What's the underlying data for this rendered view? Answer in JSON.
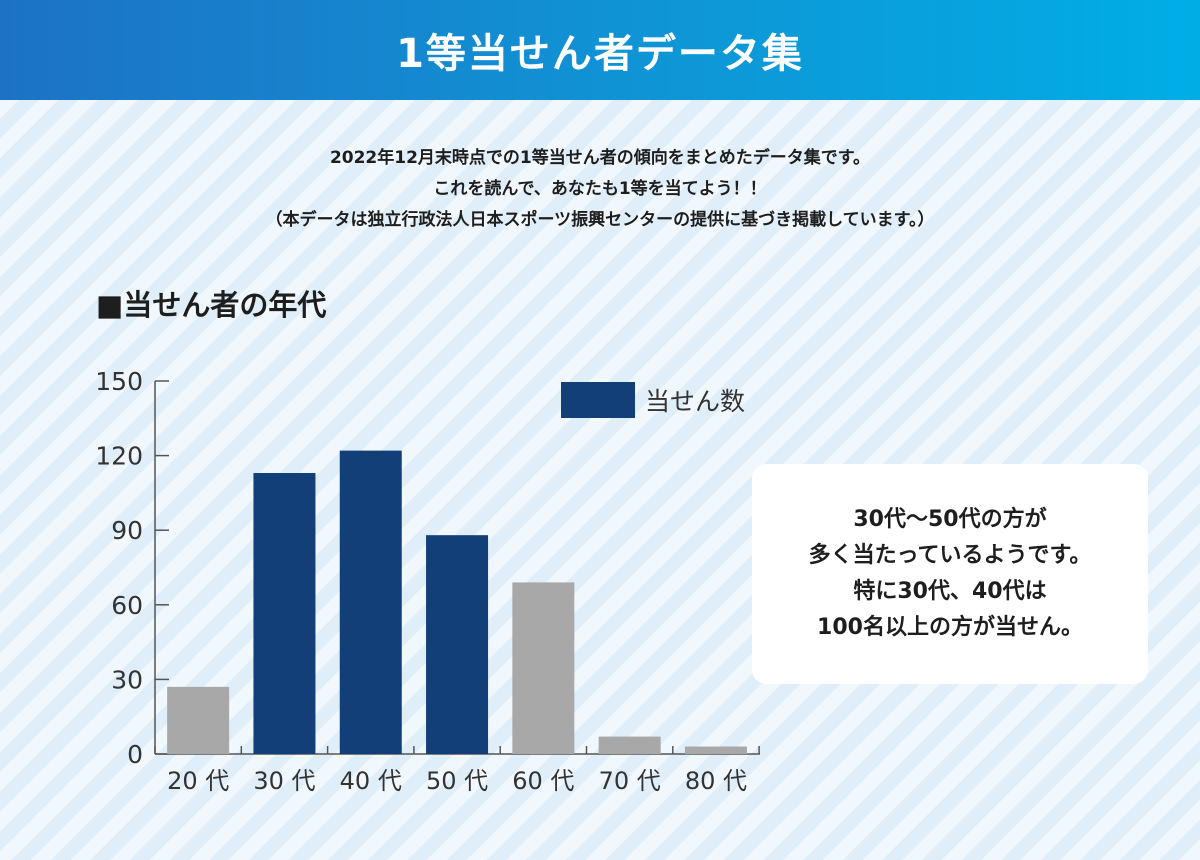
{
  "header": {
    "title": "1等当せん者データ集"
  },
  "intro": {
    "line1": "2022年12月末時点での1等当せん者の傾向をまとめたデータ集です。",
    "line2": "これを読んで、あなたも1等を当てよう！！",
    "line3": "（本データは独立行政法人日本スポーツ振興センターの提供に基づき掲載しています。）"
  },
  "section": {
    "title": "■当せん者の年代"
  },
  "callout": {
    "line1": "30代〜50代の方が",
    "line2": "多く当たっているようです。",
    "line3": "特に30代、40代は",
    "line4": "100名以上の方が当せん。"
  },
  "chart_data": {
    "type": "bar",
    "categories": [
      "20 代",
      "30 代",
      "40 代",
      "50 代",
      "60 代",
      "70 代",
      "80 代"
    ],
    "series": [
      {
        "name": "当せん数",
        "values": [
          27,
          113,
          122,
          88,
          69,
          7,
          3
        ]
      }
    ],
    "highlight": [
      false,
      true,
      true,
      true,
      false,
      false,
      false
    ],
    "colors": {
      "highlight": "#133f78",
      "normal": "#a8a8a8",
      "axis": "#555555"
    },
    "yticks": [
      0,
      30,
      60,
      90,
      120,
      150
    ],
    "ylim": [
      0,
      150
    ],
    "grid": false,
    "legend": "top-right"
  }
}
